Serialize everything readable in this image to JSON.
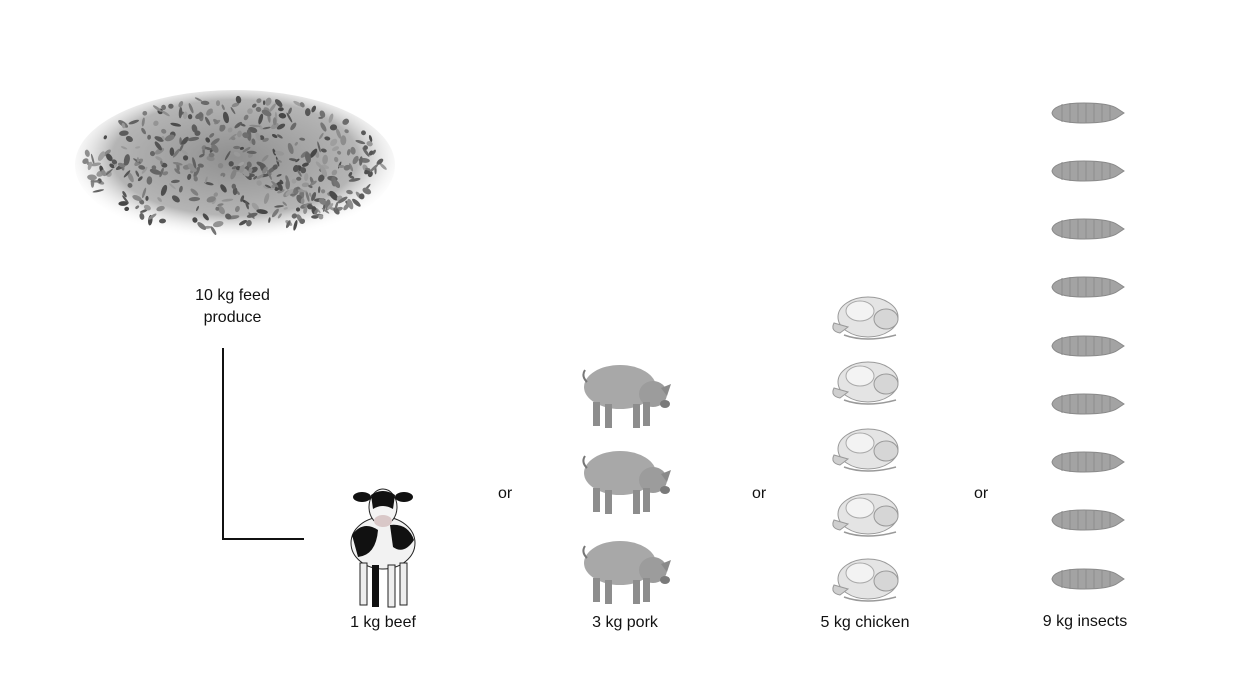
{
  "feed": {
    "label_line1": "10 kg feed",
    "label_line2": "produce",
    "icon": "grain-pile-icon"
  },
  "separator": "or",
  "outputs": [
    {
      "label": "1 kg beef",
      "icon": "cow-icon",
      "count": 1
    },
    {
      "label": "3 kg pork",
      "icon": "pig-icon",
      "count": 3
    },
    {
      "label": "5 kg chicken",
      "icon": "chicken-icon",
      "count": 5
    },
    {
      "label": "9 kg insects",
      "icon": "larva-icon",
      "count": 9
    }
  ],
  "colors": {
    "line": "#111111",
    "grayscale_fill": "#9a9a9a"
  }
}
